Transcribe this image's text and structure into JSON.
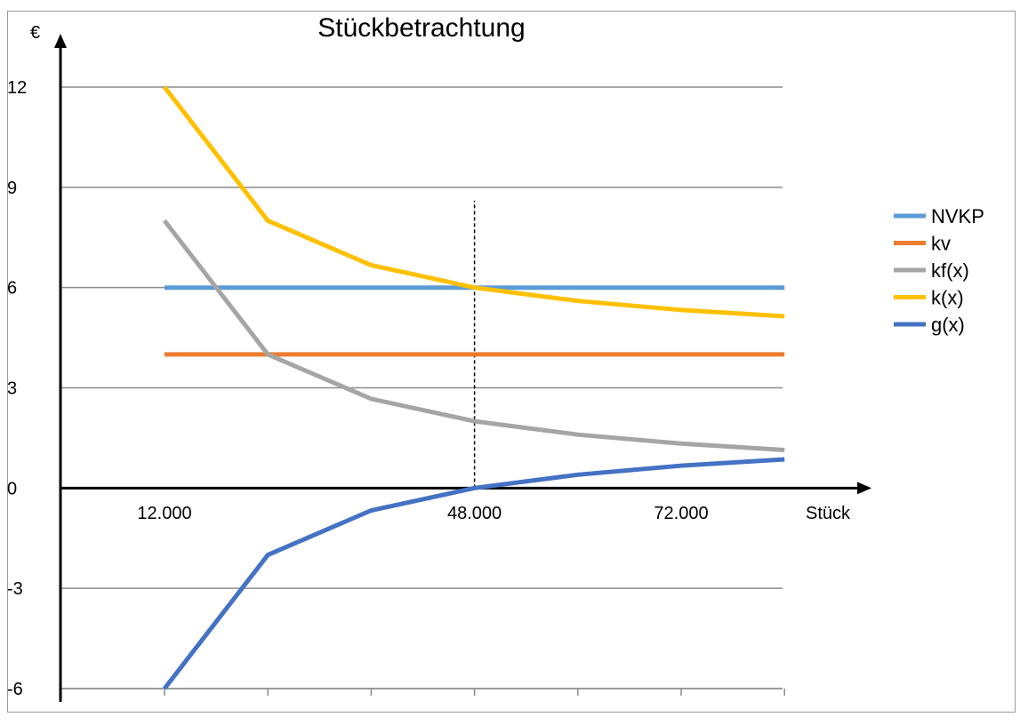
{
  "chart_data": {
    "type": "line",
    "title": "Stückbetrachtung",
    "ylabel": "€",
    "xlabel": "Stück",
    "ylim": [
      -6,
      12
    ],
    "yticks": [
      -6,
      -3,
      0,
      3,
      6,
      9,
      12
    ],
    "x": [
      12000,
      24000,
      36000,
      48000,
      60000,
      72000,
      84000
    ],
    "x_tick_labels": [
      {
        "x": 12000,
        "label": "12.000"
      },
      {
        "x": 48000,
        "label": "48.000"
      },
      {
        "x": 72000,
        "label": "72.000"
      }
    ],
    "grid": true,
    "legend_position": "right",
    "annotations": [
      {
        "type": "vertical-dashed-line",
        "x": 48000,
        "y_from": 0,
        "y_to": 8.6
      }
    ],
    "series": [
      {
        "name": "NVKP",
        "color": "#5b9bd5",
        "values": [
          6,
          6,
          6,
          6,
          6,
          6,
          6
        ]
      },
      {
        "name": "kv",
        "color": "#ed7d31",
        "values": [
          4,
          4,
          4,
          4,
          4,
          4,
          4
        ]
      },
      {
        "name": "kf(x)",
        "color": "#a5a5a5",
        "values": [
          8,
          4,
          2.67,
          2,
          1.6,
          1.33,
          1.14
        ]
      },
      {
        "name": "k(x)",
        "color": "#ffc000",
        "values": [
          12,
          8,
          6.67,
          6,
          5.6,
          5.33,
          5.14
        ]
      },
      {
        "name": "g(x)",
        "color": "#4472c4",
        "values": [
          -6,
          -2,
          -0.67,
          0,
          0.4,
          0.67,
          0.86
        ]
      }
    ]
  }
}
